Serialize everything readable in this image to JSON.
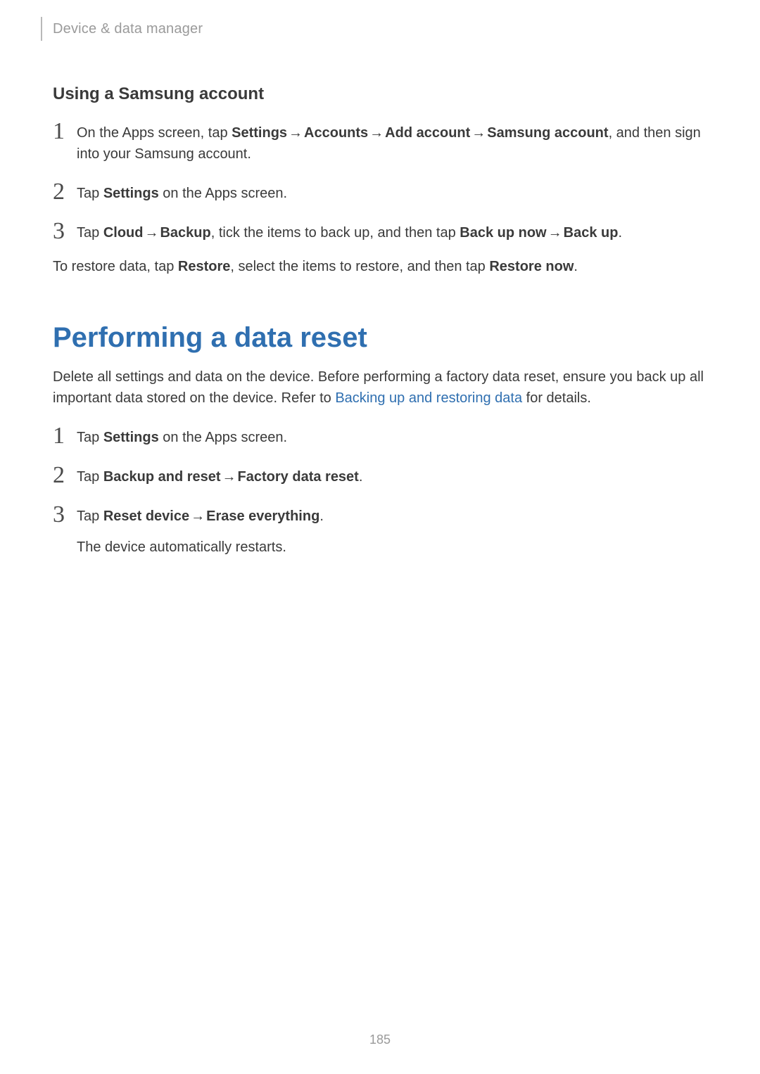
{
  "colors": {
    "text": "#3a3a3a",
    "muted": "#9a9a9a",
    "accent": "#2f6fb0",
    "rule": "#b9b9b9",
    "background": "#ffffff"
  },
  "typography": {
    "body_fontsize": 20,
    "header_fontsize": 20,
    "section_heading_fontsize": 24,
    "h1_fontsize": 40,
    "stepnum_fontsize": 34,
    "pagenum_fontsize": 18
  },
  "arrow": "→",
  "header": {
    "breadcrumb": "Device & data manager"
  },
  "section1": {
    "heading": "Using a Samsung account",
    "steps": {
      "s1": {
        "num": "1",
        "pre": "On the Apps screen, tap ",
        "b1": "Settings",
        "b2": "Accounts",
        "b3": "Add account",
        "b4": "Samsung account",
        "post": ", and then sign into your Samsung account."
      },
      "s2": {
        "num": "2",
        "pre": "Tap ",
        "b1": "Settings",
        "post": " on the Apps screen."
      },
      "s3": {
        "num": "3",
        "pre": "Tap ",
        "b1": "Cloud",
        "b2": "Backup",
        "mid": ", tick the items to back up, and then tap ",
        "b3": "Back up now",
        "b4": "Back up",
        "end": "."
      }
    },
    "restore": {
      "pre": "To restore data, tap ",
      "b1": "Restore",
      "mid": ", select the items to restore, and then tap ",
      "b2": "Restore now",
      "end": "."
    }
  },
  "section2": {
    "h1": "Performing a data reset",
    "intro": {
      "pre": "Delete all settings and data on the device. Before performing a factory data reset, ensure you back up all important data stored on the device. Refer to ",
      "link": "Backing up and restoring data",
      "post": " for details."
    },
    "steps": {
      "s1": {
        "num": "1",
        "pre": "Tap ",
        "b1": "Settings",
        "post": " on the Apps screen."
      },
      "s2": {
        "num": "2",
        "pre": "Tap ",
        "b1": "Backup and reset",
        "b2": "Factory data reset",
        "end": "."
      },
      "s3": {
        "num": "3",
        "pre": "Tap ",
        "b1": "Reset device",
        "b2": "Erase everything",
        "end": ".",
        "note": "The device automatically restarts."
      }
    }
  },
  "page_number": "185"
}
